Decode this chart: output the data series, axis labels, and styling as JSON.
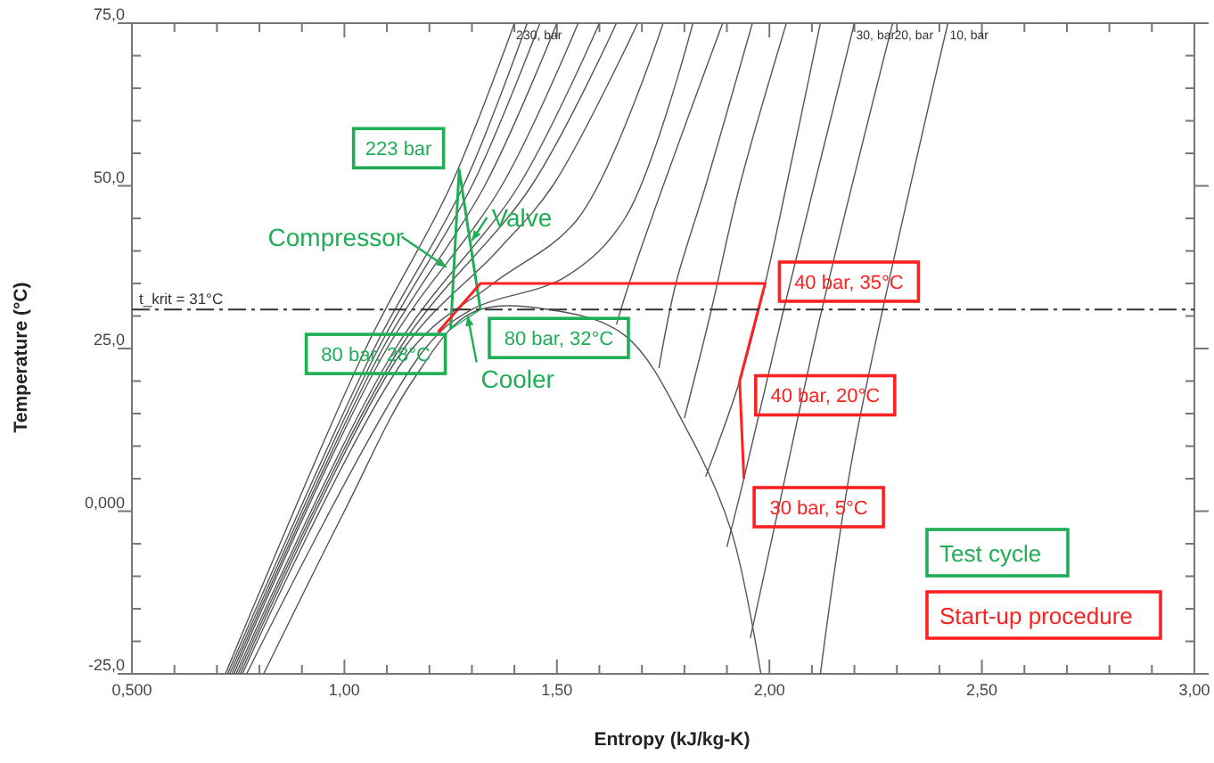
{
  "chart_data": {
    "type": "line",
    "xlabel": "Entropy (kJ/kg-K)",
    "ylabel": "Temperature (°C)",
    "xlim": [
      0.5,
      3.0
    ],
    "ylim": [
      -25,
      75
    ],
    "xticks": [
      {
        "value": 0.5,
        "label": "0,500"
      },
      {
        "value": 0.6,
        "label": null
      },
      {
        "value": 0.7,
        "label": null
      },
      {
        "value": 0.8,
        "label": null
      },
      {
        "value": 0.9,
        "label": null
      },
      {
        "value": 1.0,
        "label": "1,00"
      },
      {
        "value": 1.1,
        "label": null
      },
      {
        "value": 1.2,
        "label": null
      },
      {
        "value": 1.3,
        "label": null
      },
      {
        "value": 1.4,
        "label": null
      },
      {
        "value": 1.5,
        "label": "1,50"
      },
      {
        "value": 1.6,
        "label": null
      },
      {
        "value": 1.7,
        "label": null
      },
      {
        "value": 1.8,
        "label": null
      },
      {
        "value": 1.9,
        "label": null
      },
      {
        "value": 2.0,
        "label": "2,00"
      },
      {
        "value": 2.1,
        "label": null
      },
      {
        "value": 2.2,
        "label": null
      },
      {
        "value": 2.3,
        "label": null
      },
      {
        "value": 2.4,
        "label": null
      },
      {
        "value": 2.5,
        "label": "2,50"
      },
      {
        "value": 2.6,
        "label": null
      },
      {
        "value": 2.7,
        "label": null
      },
      {
        "value": 2.8,
        "label": null
      },
      {
        "value": 2.9,
        "label": null
      },
      {
        "value": 3.0,
        "label": "3,00"
      }
    ],
    "yticks": [
      {
        "value": -25,
        "label": "-25,0"
      },
      {
        "value": -20,
        "label": null
      },
      {
        "value": -15,
        "label": null
      },
      {
        "value": -10,
        "label": null
      },
      {
        "value": -5,
        "label": null
      },
      {
        "value": 0,
        "label": "0,000"
      },
      {
        "value": 5,
        "label": null
      },
      {
        "value": 10,
        "label": null
      },
      {
        "value": 15,
        "label": null
      },
      {
        "value": 20,
        "label": null
      },
      {
        "value": 25,
        "label": "25,0"
      },
      {
        "value": 30,
        "label": null
      },
      {
        "value": 35,
        "label": null
      },
      {
        "value": 40,
        "label": null
      },
      {
        "value": 45,
        "label": null
      },
      {
        "value": 50,
        "label": "50,0"
      },
      {
        "value": 55,
        "label": null
      },
      {
        "value": 60,
        "label": null
      },
      {
        "value": 65,
        "label": null
      },
      {
        "value": 70,
        "label": null
      },
      {
        "value": 75,
        "label": "75,0"
      }
    ],
    "grid": false,
    "legend": "bottom right",
    "marker": "none",
    "line_style": "solid",
    "series": [
      {
        "color": "#555555",
        "x": [
          0.72,
          1.05,
          1.25,
          1.4
        ],
        "values": [
          -25,
          25,
          50,
          75
        ]
      },
      {
        "color": "#555555",
        "x": [
          0.725,
          1.07,
          1.28,
          1.43
        ],
        "values": [
          -25,
          25,
          50,
          75
        ]
      },
      {
        "color": "#555555",
        "x": [
          0.73,
          1.08,
          1.3,
          1.46
        ],
        "values": [
          -25,
          25,
          50,
          75
        ]
      },
      {
        "color": "#555555",
        "x": [
          0.735,
          1.09,
          1.33,
          1.5
        ],
        "values": [
          -25,
          25,
          50,
          75
        ]
      },
      {
        "color": "#555555",
        "x": [
          0.74,
          1.1,
          1.37,
          1.55
        ],
        "values": [
          -25,
          25,
          50,
          75
        ]
      },
      {
        "color": "#555555",
        "x": [
          0.745,
          1.12,
          1.41,
          1.6
        ],
        "values": [
          -25,
          25,
          50,
          75
        ]
      },
      {
        "color": "#555555",
        "x": [
          0.75,
          1.13,
          1.44,
          1.64
        ],
        "values": [
          -25,
          25,
          50,
          75
        ]
      },
      {
        "color": "#555555",
        "x": [
          0.755,
          1.14,
          1.36,
          1.49,
          1.69
        ],
        "values": [
          -25,
          25,
          40,
          50,
          75
        ]
      },
      {
        "color": "#555555",
        "x": [
          0.76,
          1.16,
          1.35,
          1.55,
          1.75
        ],
        "values": [
          -25,
          25,
          35,
          45,
          75
        ]
      },
      {
        "color": "#555555",
        "x": [
          0.77,
          1.19,
          1.3,
          1.52,
          1.66,
          1.82
        ],
        "values": [
          -25,
          25,
          31,
          36,
          45,
          75
        ]
      },
      {
        "color": "#555555",
        "x": [
          1.64,
          1.67,
          1.75,
          1.89
        ],
        "values": [
          28.7,
          35,
          50,
          75
        ]
      },
      {
        "color": "#555555",
        "x": [
          1.74,
          1.78,
          1.85,
          1.96
        ],
        "values": [
          22,
          35,
          50,
          75
        ]
      },
      {
        "color": "#555555",
        "x": [
          1.8,
          1.86,
          1.93,
          2.04
        ],
        "values": [
          14.3,
          30,
          50,
          75
        ]
      },
      {
        "color": "#555555",
        "x": [
          1.85,
          1.93,
          1.99,
          2.04,
          2.12
        ],
        "values": [
          5.3,
          20,
          35,
          50,
          75
        ]
      },
      {
        "color": "#555555",
        "x": [
          1.9,
          1.94,
          2.03,
          2.2
        ],
        "values": [
          -5.5,
          5,
          30,
          75
        ]
      },
      {
        "color": "#555555",
        "x": [
          1.955,
          2.02,
          2.12,
          2.29
        ],
        "values": [
          -19.5,
          0,
          30,
          75
        ]
      },
      {
        "color": "#555555",
        "x": [
          2.12,
          2.2,
          2.42
        ],
        "values": [
          -25,
          10,
          75
        ]
      },
      {
        "color": "#555555",
        "x": [
          0.81,
          1.0,
          1.16,
          1.3,
          1.48,
          1.66,
          1.81,
          1.91,
          1.98
        ],
        "values": [
          -25,
          0,
          20,
          30.5,
          31,
          27,
          12,
          -3,
          -25
        ]
      },
      {
        "name": "Test cycle",
        "color": "#1fae55",
        "x": [
          1.25,
          1.27,
          1.32
        ],
        "values": [
          28,
          52.5,
          31
        ]
      },
      {
        "color": "#1fae55",
        "x": [
          1.25,
          1.32
        ],
        "values": [
          28,
          31
        ]
      },
      {
        "name": "Start-up procedure",
        "color": "#ff2020",
        "x": [
          1.94,
          1.93,
          1.99,
          1.32,
          1.22
        ],
        "values": [
          5,
          20,
          35,
          35,
          27.5
        ]
      }
    ],
    "ref_lines": [
      {
        "axis": "y",
        "value": 31,
        "label": "t_krit = 31°C",
        "color": "#333333",
        "line_style": "dashed"
      }
    ],
    "annotations": [
      {
        "text": "223 bar",
        "x": 1.27,
        "y": 52.5
      },
      {
        "text": "80 bar, 28°C",
        "x": 1.25,
        "y": 28
      },
      {
        "text": "80 bar, 32°C",
        "x": 1.32,
        "y": 31
      },
      {
        "text": "Compressor",
        "x": 1.24,
        "y": 37.5
      },
      {
        "text": "Valve",
        "x": 1.3,
        "y": 41.6
      },
      {
        "text": "Cooler",
        "x": 1.29,
        "y": 30
      },
      {
        "text": "40 bar, 35°C",
        "x": 1.99,
        "y": 35
      },
      {
        "text": "40 bar, 20°C",
        "x": 1.93,
        "y": 20
      },
      {
        "text": "30 bar, 5°C",
        "x": 1.94,
        "y": 5
      },
      {
        "text": "230, bar",
        "x": 1.4,
        "y": 75
      },
      {
        "text": "30, bar",
        "x": 2.2,
        "y": 75
      },
      {
        "text": "20, bar",
        "x": 2.29,
        "y": 75
      },
      {
        "text": "10, bar",
        "x": 2.42,
        "y": 75
      }
    ]
  }
}
